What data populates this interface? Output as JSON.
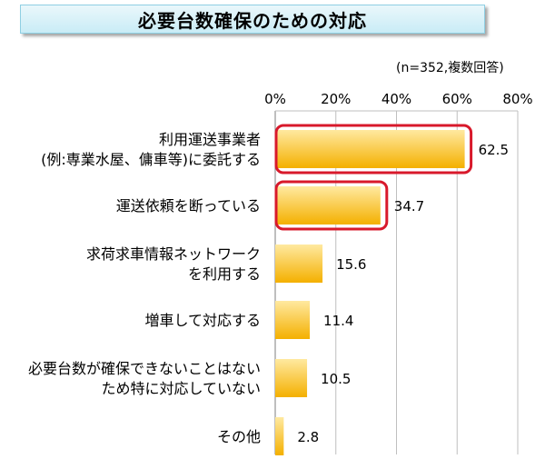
{
  "title": "必要台数確保のための対応",
  "sample_note": "(n=352,複数回答)",
  "colors": {
    "bar_top": "#ffe9a0",
    "bar_bottom": "#f4b000",
    "highlight_border": "#d8192b",
    "title_bg": "#c9ecf6"
  },
  "chart_data": {
    "type": "bar",
    "orientation": "horizontal",
    "categories": [
      [
        "利用運送事業者",
        "(例:専業水屋、傭車等)に委託する"
      ],
      [
        "運送依頼を断っている"
      ],
      [
        "求荷求車情報ネットワーク",
        "を利用する"
      ],
      [
        "増車して対応する"
      ],
      [
        "必要台数が確保できないことはない",
        "ため特に対応していない"
      ],
      [
        "その他"
      ]
    ],
    "values": [
      62.5,
      34.7,
      15.6,
      11.4,
      10.5,
      2.8
    ],
    "value_labels": [
      "62.5",
      "34.7",
      "15.6",
      "11.4",
      "10.5",
      "2.8"
    ],
    "highlighted": [
      true,
      true,
      false,
      false,
      false,
      false
    ],
    "xlim": [
      0,
      80
    ],
    "ticks": [
      0,
      20,
      40,
      60,
      80
    ],
    "tick_labels": [
      "0%",
      "20%",
      "40%",
      "60%",
      "80%"
    ],
    "axis_position": "top",
    "grid": true
  }
}
